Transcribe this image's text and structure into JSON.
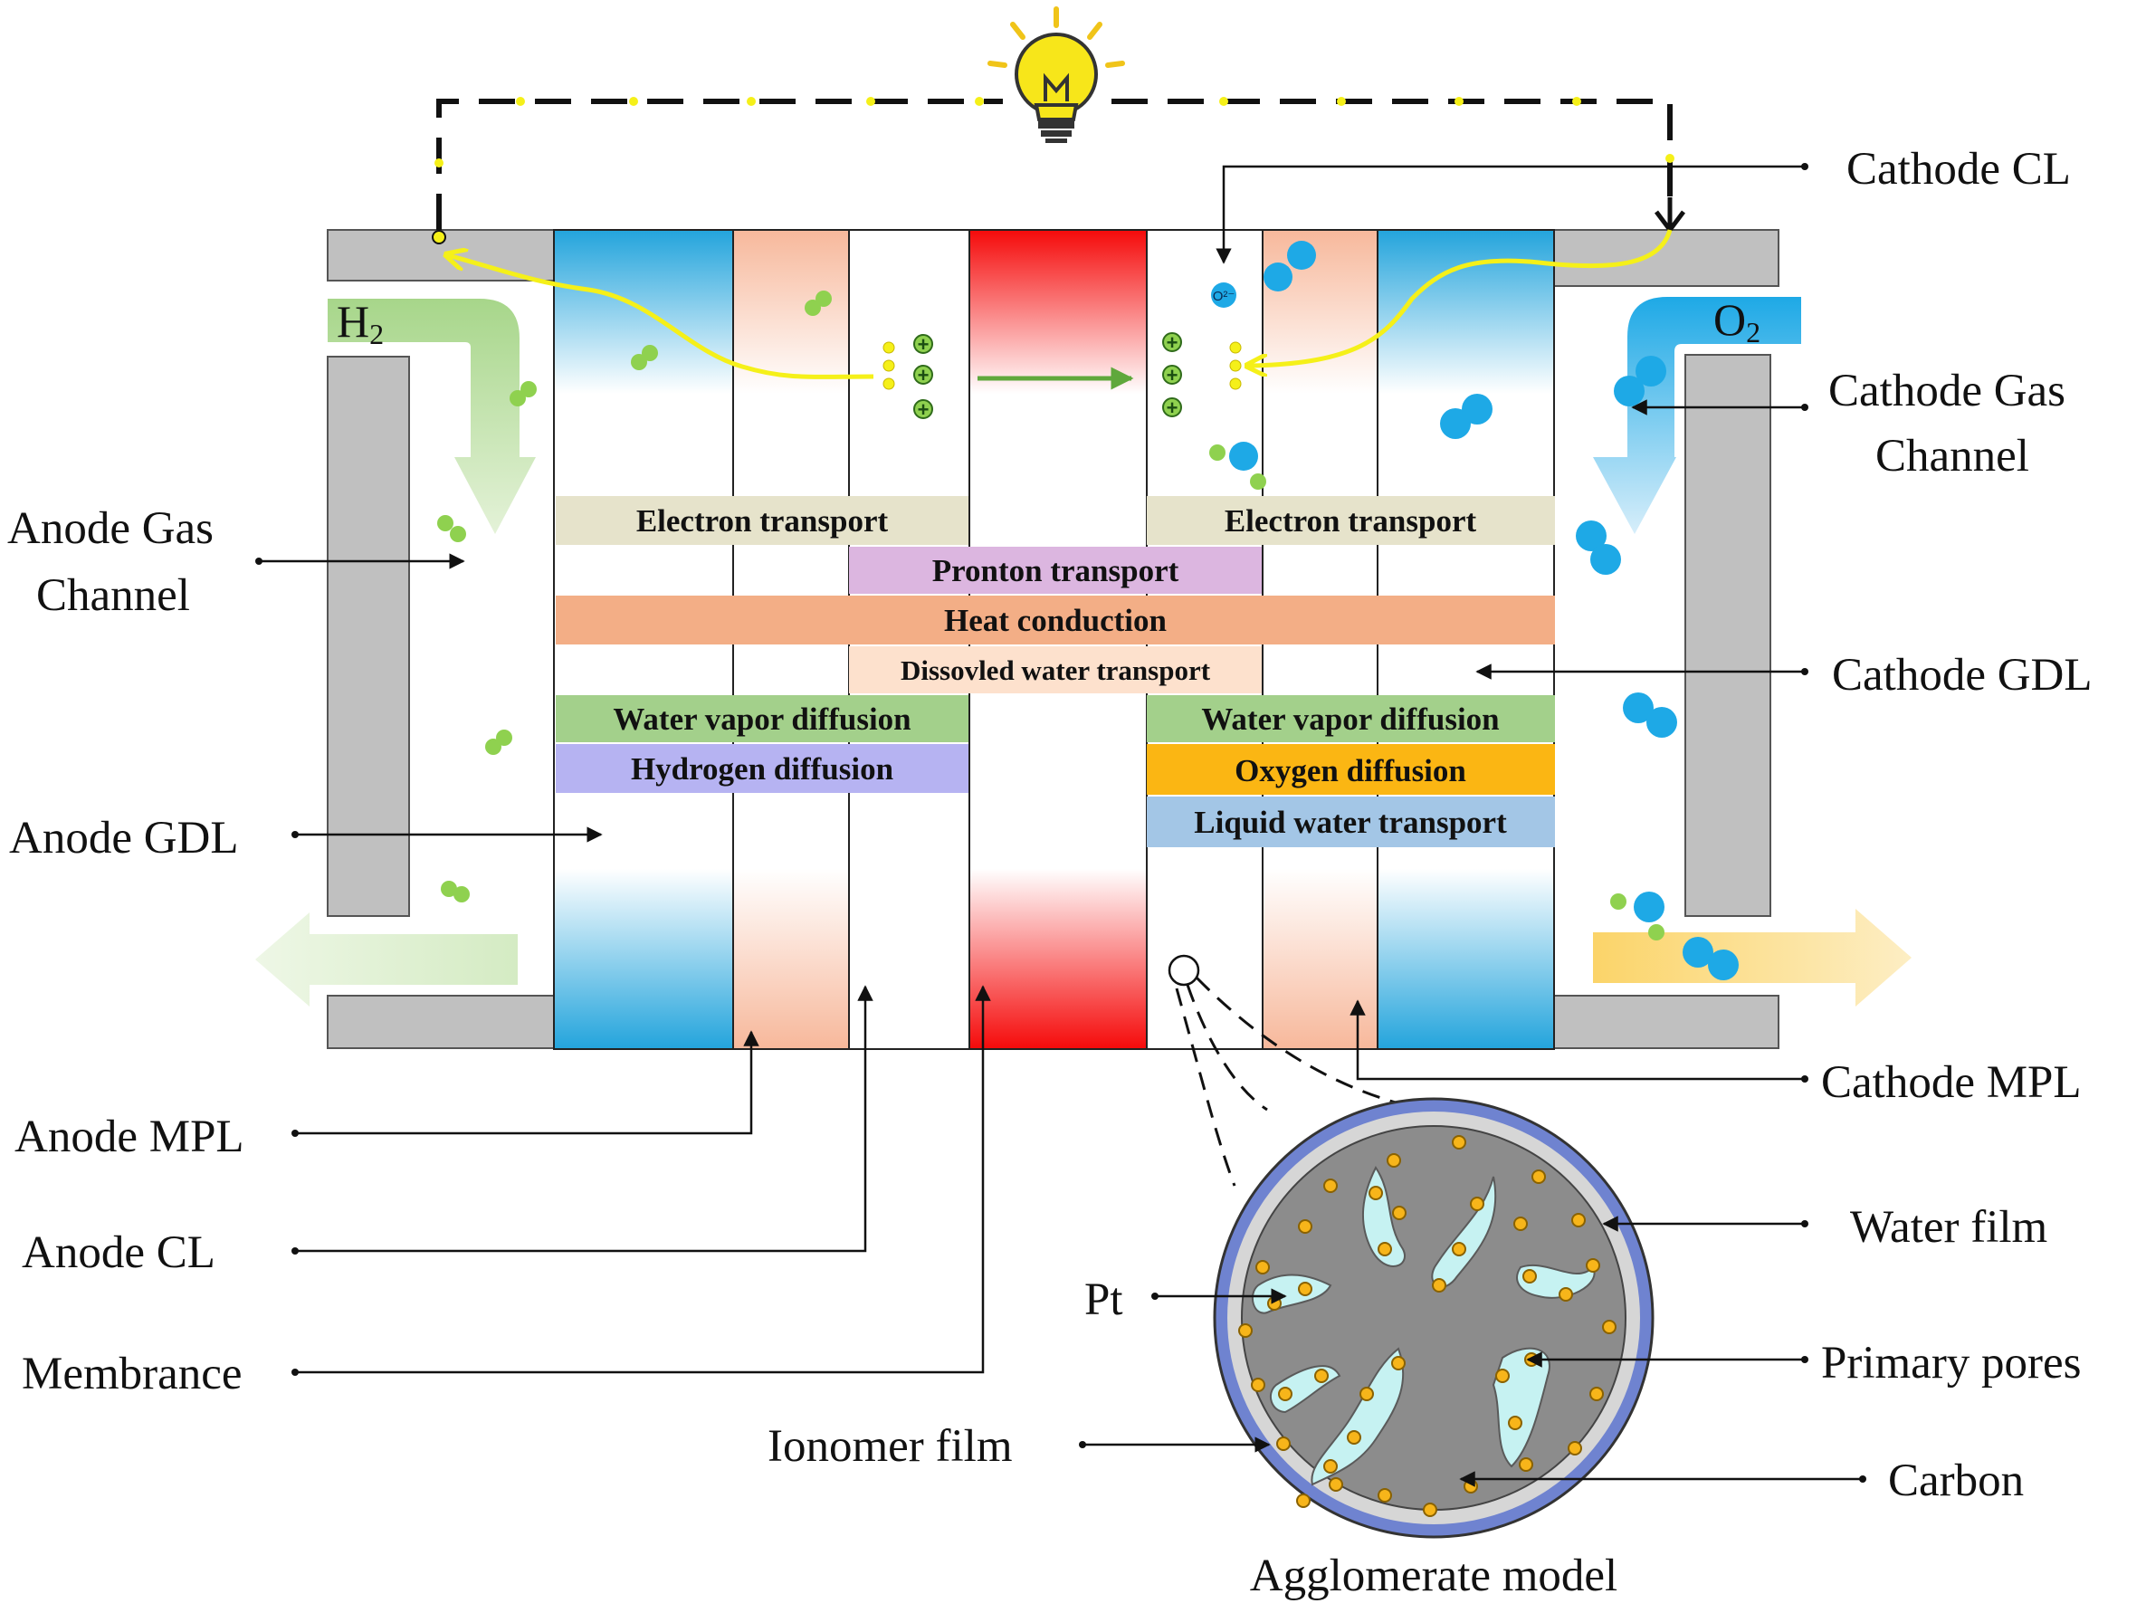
{
  "labels": {
    "cathode_cl": "Cathode CL",
    "cathode_gas_channel_1": "Cathode Gas",
    "cathode_gas_channel_2": "Channel",
    "cathode_gdl": "Cathode GDL",
    "cathode_mpl": "Cathode MPL",
    "water_film": "Water film",
    "primary_pores": "Primary pores",
    "carbon": "Carbon",
    "anode_gas_channel_1": "Anode Gas",
    "anode_gas_channel_2": "Channel",
    "anode_gdl": "Anode GDL",
    "anode_mpl": "Anode MPL",
    "anode_cl": "Anode CL",
    "membrance": "Membrance",
    "pt": "Pt",
    "ionomer_film": "Ionomer film",
    "agglomerate_model": "Agglomerate model"
  },
  "gases": {
    "h2_main": "H",
    "h2_sub": "2",
    "o2_main": "O",
    "o2_sub": "2"
  },
  "bands": {
    "electron_transport_left": "Electron transport",
    "electron_transport_right": "Electron transport",
    "proton_transport": "Pronton transport",
    "heat_conduction": "Heat conduction",
    "dissolved_water": "Dissovled water transport",
    "water_vapor_left": "Water vapor diffusion",
    "water_vapor_right": "Water vapor diffusion",
    "hydrogen_diffusion": "Hydrogen diffusion",
    "oxygen_diffusion": "Oxygen diffusion",
    "liquid_water": "Liquid water transport"
  },
  "symbols": {
    "proton": "+",
    "oxygen_ion": "O²⁻"
  },
  "colors": {
    "membrane_red": "#f50a0a",
    "gdl_blue": "#23a4dc",
    "mpl_peach": "#f7b89b",
    "plate_gray": "#c0c0c0",
    "hydrogen_green": "#8fd14f",
    "oxygen_blue": "#1ea9e6",
    "electron_yellow": "#f5f019",
    "pt_orange": "#f7b51a",
    "water_film_blue": "#6f83d0",
    "pore_cyan": "#c6f2f2",
    "carbon_gray": "#8c8c8c",
    "band_electron": "#e6e3cb",
    "band_proton": "#dcb6e0",
    "band_heat": "#f3ae86",
    "band_dissolved": "#fde1cd",
    "band_vapor": "#a3d08b",
    "band_hydrogen": "#b6b3f2",
    "band_oxygen": "#fbb613",
    "band_liquid": "#a3c6e6"
  }
}
